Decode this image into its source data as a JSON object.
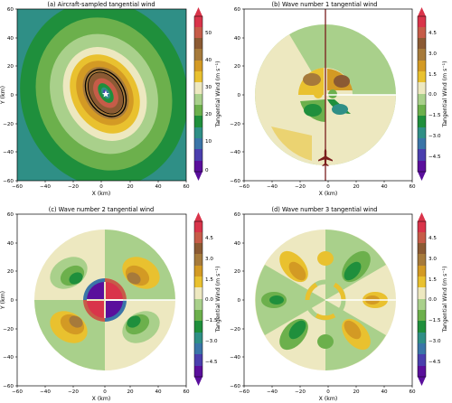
{
  "chart_data": [
    {
      "type": "contour",
      "title": "(a) Aircraft-sampled tangential wind",
      "xlabel": "X (km)",
      "ylabel": "Y (km)",
      "xlim": [
        -60,
        60
      ],
      "ylim": [
        -60,
        60
      ],
      "xticks": [
        "−60",
        "−40",
        "−20",
        "0",
        "20",
        "40",
        "60"
      ],
      "yticks": [
        "60",
        "40",
        "20",
        "0",
        "−20",
        "−40",
        "−60"
      ],
      "field": "aircraft-sampled tangential wind, max ~55 m s-1 near center, RMW ~15 km, elliptical elongated SW-NE",
      "colorbar": {
        "label": "Tangential Wind (m s⁻¹)",
        "ticks": [
          "50",
          "40",
          "30",
          "20",
          "10",
          "0"
        ],
        "range": [
          0,
          55
        ],
        "colors": [
          "#5a0f9c",
          "#4a3fae",
          "#3a75a8",
          "#2f8f86",
          "#1f8f3c",
          "#6cb04c",
          "#a9d08b",
          "#ede8c0",
          "#e9c12f",
          "#d39a24",
          "#a67a3b",
          "#8b5a33",
          "#c65c48",
          "#d9344a"
        ]
      },
      "annotations": [
        "aircraft flight track (black) over ellipse",
        "storm center marker (white)"
      ]
    },
    {
      "type": "contour",
      "title": "(b) Wave number 1 tangential wind",
      "xlabel": "X (km)",
      "ylabel": "",
      "xlim": [
        -60,
        60
      ],
      "ylim": [
        -60,
        60
      ],
      "xticks": [
        "−60",
        "−40",
        "−20",
        "0",
        "20",
        "40",
        "60"
      ],
      "yticks": [
        "60",
        "40",
        "20",
        "0",
        "−20",
        "−40",
        "−60"
      ],
      "field": "wavenumber-1 asymmetry, amplitude ~4.5 m s-1",
      "colorbar": {
        "label": "Tangential Wind (m s⁻¹)",
        "ticks": [
          "4.5",
          "3.0",
          "1.5",
          "0.0",
          "−1.5",
          "−3.0",
          "−4.5"
        ],
        "range": [
          -5,
          5
        ],
        "colors": [
          "#5a0f9c",
          "#4a3fae",
          "#3a75a8",
          "#2f8f86",
          "#1f8f3c",
          "#6cb04c",
          "#a9d08b",
          "#ede8c0",
          "#e9c12f",
          "#d39a24",
          "#a67a3b",
          "#8b5a33",
          "#c65c48",
          "#d9344a"
        ]
      },
      "annotations": [
        "aircraft icon at bottom of flight track",
        "flight track (vertical brown line)",
        "white radial line toward east"
      ]
    },
    {
      "type": "contour",
      "title": "(c) Wave number 2 tangential wind",
      "xlabel": "X (km)",
      "ylabel": "Y (km)",
      "xlim": [
        -60,
        60
      ],
      "ylim": [
        -60,
        60
      ],
      "xticks": [
        "−60",
        "−40",
        "−20",
        "0",
        "20",
        "40",
        "60"
      ],
      "yticks": [
        "60",
        "40",
        "20",
        "0",
        "−20",
        "−40",
        "−60"
      ],
      "field": "wavenumber-2 asymmetry, amplitude ~4.5 m s-1",
      "colorbar": {
        "label": "Tangential Wind (m s⁻¹)",
        "ticks": [
          "4.5",
          "3.0",
          "1.5",
          "0.0",
          "−1.5",
          "−3.0",
          "−4.5"
        ],
        "range": [
          -5,
          5
        ],
        "colors": [
          "#5a0f9c",
          "#4a3fae",
          "#3a75a8",
          "#2f8f86",
          "#1f8f3c",
          "#6cb04c",
          "#a9d08b",
          "#ede8c0",
          "#e9c12f",
          "#d39a24",
          "#a67a3b",
          "#8b5a33",
          "#c65c48",
          "#d9344a"
        ]
      },
      "annotations": [
        "white radial line toward east"
      ]
    },
    {
      "type": "contour",
      "title": "(d) Wave number 3 tangential wind",
      "xlabel": "X (km)",
      "ylabel": "",
      "xlim": [
        -60,
        60
      ],
      "ylim": [
        -60,
        60
      ],
      "xticks": [
        "−60",
        "−40",
        "−20",
        "0",
        "20",
        "40",
        "60"
      ],
      "yticks": [
        "60",
        "40",
        "20",
        "0",
        "−20",
        "−40",
        "−60"
      ],
      "field": "wavenumber-3 asymmetry, amplitude ~3 m s-1",
      "colorbar": {
        "label": "Tangential Wind (m s⁻¹)",
        "ticks": [
          "4.5",
          "3.0",
          "1.5",
          "0.0",
          "−1.5",
          "−3.0",
          "−4.5"
        ],
        "range": [
          -5,
          5
        ],
        "colors": [
          "#5a0f9c",
          "#4a3fae",
          "#3a75a8",
          "#2f8f86",
          "#1f8f3c",
          "#6cb04c",
          "#a9d08b",
          "#ede8c0",
          "#e9c12f",
          "#d39a24",
          "#a67a3b",
          "#8b5a33",
          "#c65c48",
          "#d9344a"
        ]
      },
      "annotations": [
        "white radial line toward east"
      ]
    }
  ]
}
